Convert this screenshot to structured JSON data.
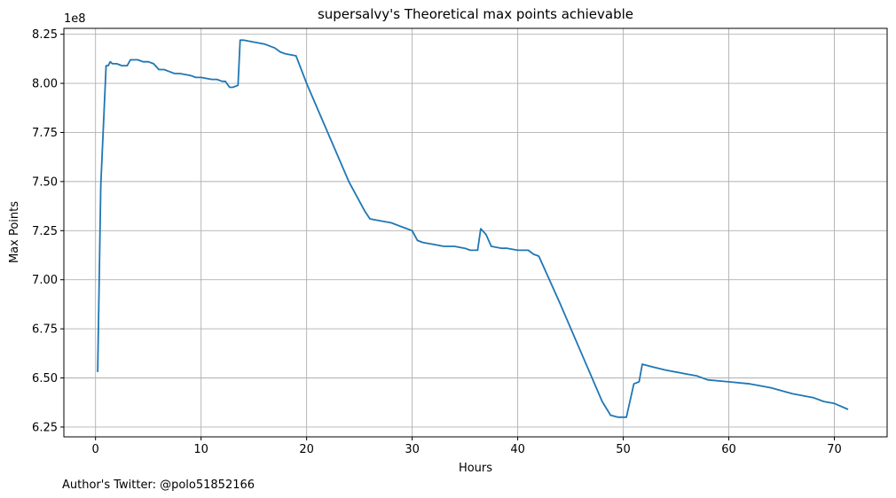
{
  "chart_data": {
    "type": "line",
    "title": "supersalvy's Theoretical max points achievable",
    "xlabel": "Hours",
    "ylabel": "Max Points",
    "y_offset_label": "1e8",
    "footer": "Author's Twitter: @polo51852166",
    "xlim": [
      -3,
      75
    ],
    "ylim": [
      6.2,
      8.28
    ],
    "x_ticks": [
      0,
      10,
      20,
      30,
      40,
      50,
      60,
      70
    ],
    "y_ticks": [
      6.25,
      6.5,
      6.75,
      7.0,
      7.25,
      7.5,
      7.75,
      8.0,
      8.25
    ],
    "y_tick_labels": [
      "6.25",
      "6.50",
      "6.75",
      "7.00",
      "7.25",
      "7.50",
      "7.75",
      "8.00",
      "8.25"
    ],
    "grid": true,
    "line_color": "#1f77b4",
    "series": [
      {
        "x": [
          0.2,
          0.5,
          1.0,
          1.2,
          1.4,
          1.6,
          2.0,
          2.5,
          3.0,
          3.3,
          3.5,
          4.0,
          4.5,
          5.0,
          5.5,
          6.0,
          6.5,
          7.0,
          7.5,
          8.0,
          9.0,
          9.5,
          10.0,
          11.0,
          11.5,
          12.0,
          12.3,
          12.7,
          13.0,
          13.5,
          13.7,
          14.0,
          15.0,
          16.0,
          17.0,
          17.5,
          18.0,
          19.0,
          20.0,
          22.0,
          24.0,
          25.5,
          26.0,
          27.0,
          28.0,
          29.0,
          30.0,
          30.5,
          31.0,
          32.0,
          33.0,
          34.0,
          35.0,
          35.5,
          36.2,
          36.5,
          37.0,
          37.5,
          38.5,
          39.0,
          40.0,
          41.0,
          41.5,
          42.0,
          44.0,
          46.0,
          48.0,
          48.8,
          49.5,
          50.3,
          51.0,
          51.5,
          51.8,
          52.5,
          54.0,
          56.0,
          57.0,
          58.0,
          60.0,
          62.0,
          64.0,
          66.0,
          68.0,
          69.0,
          70.0,
          71.3
        ],
        "y": [
          6.53,
          7.48,
          8.09,
          8.09,
          8.11,
          8.1,
          8.1,
          8.09,
          8.09,
          8.12,
          8.12,
          8.12,
          8.11,
          8.11,
          8.1,
          8.07,
          8.07,
          8.06,
          8.05,
          8.05,
          8.04,
          8.03,
          8.03,
          8.02,
          8.02,
          8.01,
          8.01,
          7.98,
          7.98,
          7.99,
          8.22,
          8.22,
          8.21,
          8.2,
          8.18,
          8.16,
          8.15,
          8.14,
          8.0,
          7.75,
          7.5,
          7.35,
          7.31,
          7.3,
          7.29,
          7.27,
          7.25,
          7.2,
          7.19,
          7.18,
          7.17,
          7.17,
          7.16,
          7.15,
          7.15,
          7.26,
          7.23,
          7.17,
          7.16,
          7.16,
          7.15,
          7.15,
          7.13,
          7.12,
          6.88,
          6.63,
          6.38,
          6.31,
          6.3,
          6.3,
          6.47,
          6.48,
          6.57,
          6.56,
          6.54,
          6.52,
          6.51,
          6.49,
          6.48,
          6.47,
          6.45,
          6.42,
          6.4,
          6.38,
          6.37,
          6.34
        ]
      }
    ]
  }
}
